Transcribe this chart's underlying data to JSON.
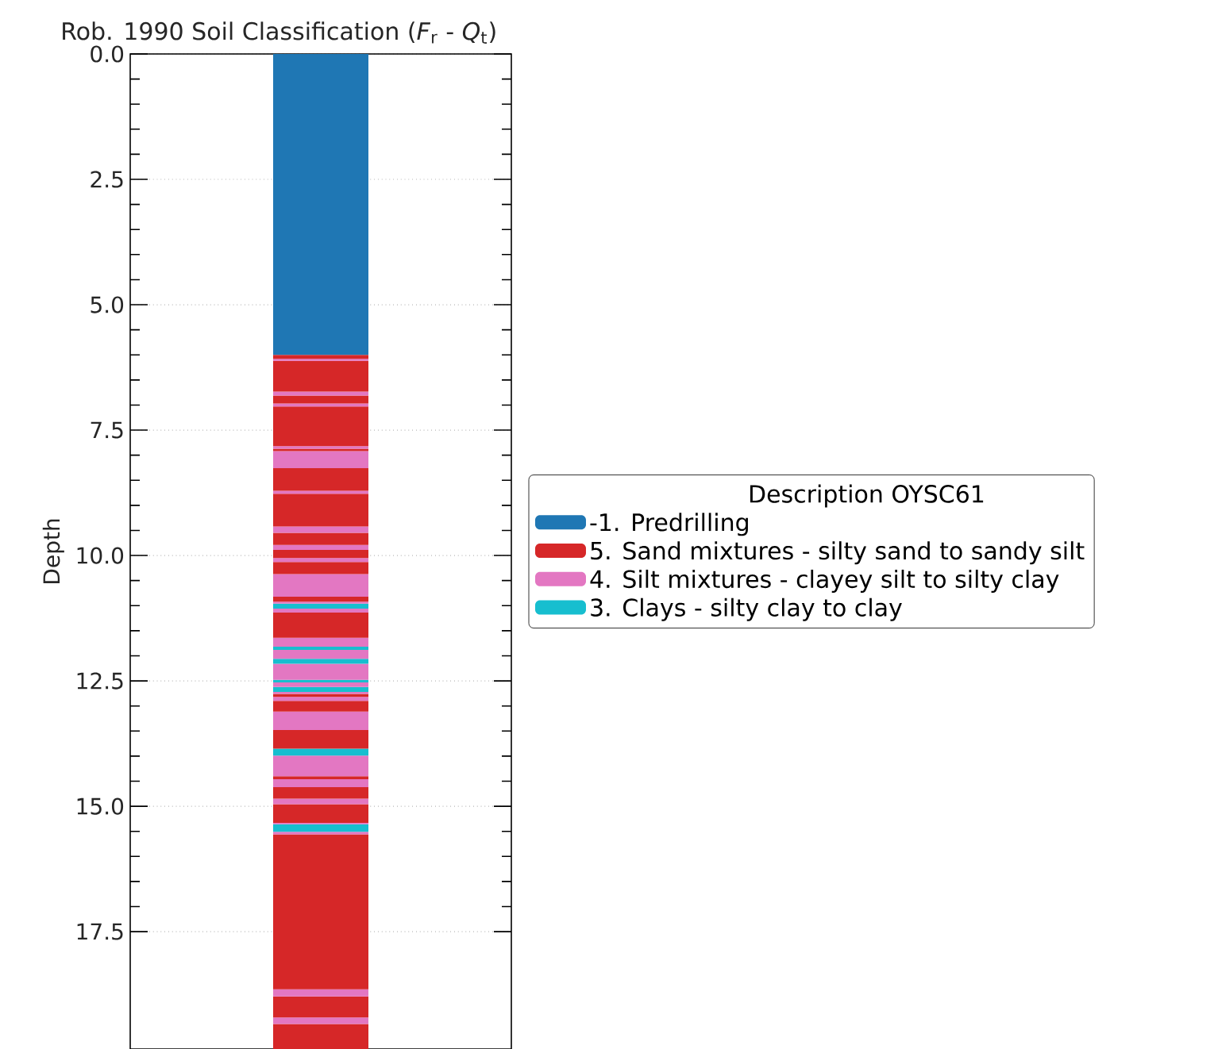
{
  "chart_data": {
    "type": "bar",
    "stacked": true,
    "title": "Rob. 1990 Soil Classification (*F*$_{r}$ - *Q*$_{t}$)",
    "ylabel": "Depth",
    "legend_title": "Description OYSC61",
    "legend": "right",
    "grid": "y",
    "tick_labels": "y",
    "categories": [
      null
    ],
    "ylim": [
      19.84,
      0
    ],
    "yticks": [
      {
        "value": 0,
        "label": "0.0"
      },
      {
        "value": 2.5,
        "label": "2.5"
      },
      {
        "value": 5,
        "label": "5.0"
      },
      {
        "value": 7.5,
        "label": "7.5"
      },
      {
        "value": 10,
        "label": "10.0"
      },
      {
        "value": 12.5,
        "label": "12.5"
      },
      {
        "value": 15,
        "label": "15.0"
      },
      {
        "value": 17.5,
        "label": "17.5"
      }
    ],
    "series": [
      {
        "name": "-1. Predrilling",
        "color": "#1f77b4",
        "values": [
          6.0
        ]
      },
      {
        "name": "5. Sand mixtures - silty sand to sandy silt",
        "color": "#d62728",
        "values": [
          0.08
        ]
      },
      {
        "name": "4. Silt mixtures - clayey silt to silty clay",
        "color": "#e377c2",
        "values": [
          0.04
        ]
      },
      {
        "color": "#d62728",
        "values": [
          0.61
        ]
      },
      {
        "color": "#e377c2",
        "values": [
          0.08
        ]
      },
      {
        "color": "#d62728",
        "values": [
          0.16
        ]
      },
      {
        "color": "#e377c2",
        "values": [
          0.06
        ]
      },
      {
        "color": "#d62728",
        "values": [
          0.79
        ]
      },
      {
        "color": "#e377c2",
        "values": [
          0.05
        ]
      },
      {
        "color": "#d62728",
        "values": [
          0.05
        ]
      },
      {
        "color": "#e377c2",
        "values": [
          0.34
        ]
      },
      {
        "color": "#d62728",
        "values": [
          0.45
        ]
      },
      {
        "color": "#e377c2",
        "values": [
          0.06
        ]
      },
      {
        "color": "#d62728",
        "values": [
          0.65
        ]
      },
      {
        "color": "#e377c2",
        "values": [
          0.13
        ]
      },
      {
        "color": "#d62728",
        "values": [
          0.24
        ]
      },
      {
        "color": "#e377c2",
        "values": [
          0.1
        ]
      },
      {
        "color": "#d62728",
        "values": [
          0.16
        ]
      },
      {
        "color": "#e377c2",
        "values": [
          0.08
        ]
      },
      {
        "color": "#d62728",
        "values": [
          0.24
        ]
      },
      {
        "color": "#e377c2",
        "values": [
          0.45
        ]
      },
      {
        "color": "#d62728",
        "values": [
          0.1
        ]
      },
      {
        "color": "#e377c2",
        "values": [
          0.04
        ]
      },
      {
        "name": "3. Clays - silty clay to clay",
        "color": "#17becf",
        "values": [
          0.1
        ]
      },
      {
        "color": "#e377c2",
        "values": [
          0.08
        ]
      },
      {
        "color": "#d62728",
        "values": [
          0.5
        ]
      },
      {
        "color": "#e377c2",
        "values": [
          0.18
        ]
      },
      {
        "color": "#17becf",
        "values": [
          0.06
        ]
      },
      {
        "color": "#e377c2",
        "values": [
          0.18
        ]
      },
      {
        "color": "#17becf",
        "values": [
          0.1
        ]
      },
      {
        "color": "#e377c2",
        "values": [
          0.32
        ]
      },
      {
        "color": "#17becf",
        "values": [
          0.05
        ]
      },
      {
        "color": "#e377c2",
        "values": [
          0.09
        ]
      },
      {
        "color": "#17becf",
        "values": [
          0.1
        ]
      },
      {
        "color": "#e377c2",
        "values": [
          0.04
        ]
      },
      {
        "color": "#d62728",
        "values": [
          0.06
        ]
      },
      {
        "color": "#e377c2",
        "values": [
          0.08
        ]
      },
      {
        "color": "#d62728",
        "values": [
          0.21
        ]
      },
      {
        "color": "#e377c2",
        "values": [
          0.37
        ]
      },
      {
        "color": "#d62728",
        "values": [
          0.37
        ]
      },
      {
        "color": "#17becf",
        "values": [
          0.14
        ]
      },
      {
        "color": "#e377c2",
        "values": [
          0.41
        ]
      },
      {
        "color": "#d62728",
        "values": [
          0.06
        ]
      },
      {
        "color": "#e377c2",
        "values": [
          0.16
        ]
      },
      {
        "color": "#d62728",
        "values": [
          0.23
        ]
      },
      {
        "color": "#e377c2",
        "values": [
          0.11
        ]
      },
      {
        "color": "#d62728",
        "values": [
          0.37
        ]
      },
      {
        "color": "#e377c2",
        "values": [
          0.03
        ]
      },
      {
        "color": "#17becf",
        "values": [
          0.15
        ]
      },
      {
        "color": "#e377c2",
        "values": [
          0.05
        ]
      },
      {
        "color": "#d62728",
        "values": [
          3.09
        ]
      },
      {
        "color": "#e377c2",
        "values": [
          0.14
        ]
      },
      {
        "color": "#d62728",
        "values": [
          0.42
        ]
      },
      {
        "color": "#e377c2",
        "values": [
          0.13
        ]
      },
      {
        "color": "#d62728",
        "values": [
          0.5
        ]
      }
    ]
  }
}
